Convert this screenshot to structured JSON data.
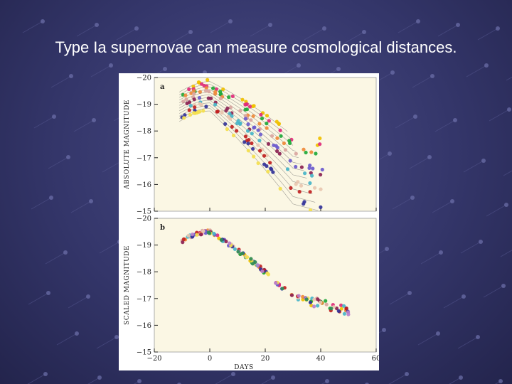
{
  "slide": {
    "title": "Type Ia supernovae can measure cosmological distances."
  },
  "theme": {
    "background": "#34366a",
    "title_color": "#ffffff",
    "panel_fill": "#fbf7e4",
    "point_colors": [
      "#f0c000",
      "#e02b7a",
      "#1fa83a",
      "#ef8a3a",
      "#d9a5a0",
      "#6a5acd",
      "#8b2252",
      "#46b4c8",
      "#e8c7b0",
      "#c02020",
      "#333399",
      "#f4e04d",
      "#b87fcc",
      "#2e8b57"
    ]
  },
  "chart_data": [
    {
      "type": "scatter",
      "panel_label": "a",
      "ylabel": "ABSOLUTE MAGNITUDE",
      "xlabel": "",
      "xlim": [
        -20,
        60
      ],
      "ylim": [
        -15,
        -20
      ],
      "y_ticks": [
        "-20",
        "-19",
        "-18",
        "-17",
        "-16",
        "-15"
      ],
      "x_ticks": [
        "",
        "",
        "",
        "",
        ""
      ],
      "series": [
        {
          "peak": -19.85,
          "decline": 0.05,
          "tail": 0.02
        },
        {
          "peak": -19.75,
          "decline": 0.052,
          "tail": 0.021
        },
        {
          "peak": -19.65,
          "decline": 0.055,
          "tail": 0.022
        },
        {
          "peak": -19.55,
          "decline": 0.058,
          "tail": 0.022
        },
        {
          "peak": -19.45,
          "decline": 0.062,
          "tail": 0.023
        },
        {
          "peak": -19.35,
          "decline": 0.066,
          "tail": 0.024
        },
        {
          "peak": -19.25,
          "decline": 0.07,
          "tail": 0.024
        },
        {
          "peak": -19.15,
          "decline": 0.075,
          "tail": 0.025
        },
        {
          "peak": -19.05,
          "decline": 0.08,
          "tail": 0.025
        },
        {
          "peak": -18.95,
          "decline": 0.086,
          "tail": 0.026
        },
        {
          "peak": -18.85,
          "decline": 0.092,
          "tail": 0.027
        },
        {
          "peak": -18.75,
          "decline": 0.098,
          "tail": 0.027
        }
      ]
    },
    {
      "type": "scatter",
      "panel_label": "b",
      "ylabel": "SCALED MAGNITUDE",
      "xlabel": "DAYS",
      "xlim": [
        -20,
        60
      ],
      "ylim": [
        -15,
        -20
      ],
      "y_ticks": [
        "-20",
        "-19",
        "-18",
        "-17",
        "-16",
        "-15"
      ],
      "x_ticks": [
        "-20",
        "0",
        "20",
        "40",
        "60"
      ],
      "series": [
        {
          "peak": -19.5,
          "decline": 0.064,
          "tail": 0.024
        }
      ]
    }
  ]
}
